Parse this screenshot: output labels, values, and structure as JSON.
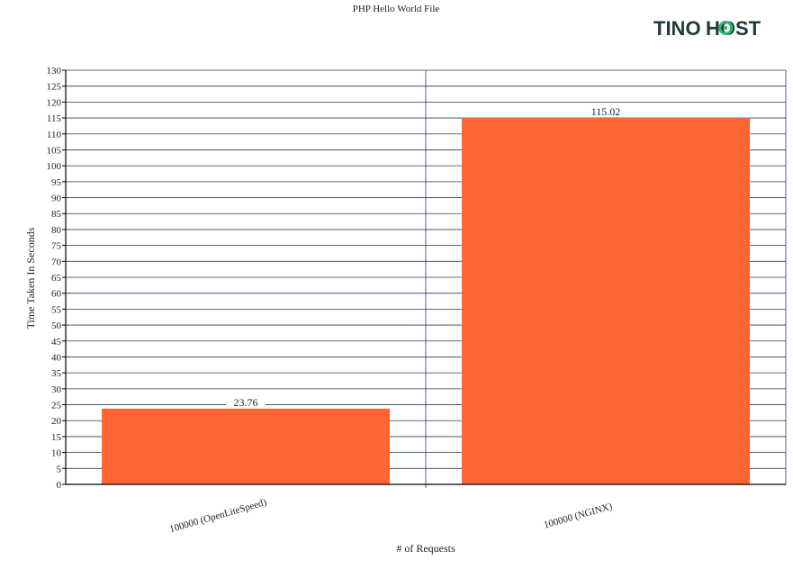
{
  "brand": {
    "logo_text_left": "TINO",
    "logo_text_right": "HOST",
    "logo_color": "#1e3b3b",
    "logo_accent": "#2bb673"
  },
  "colors": {
    "bar": "#ff6633",
    "grid": "#1f3f6e",
    "axis": "#000000"
  },
  "chart_data": {
    "type": "bar",
    "title": "PHP Hello World File",
    "xlabel": "# of Requests",
    "ylabel": "Time Taken In Seconds",
    "categories": [
      "100000 (OpenLiteSpeed)",
      "100000 (NGINX)"
    ],
    "values": [
      23.76,
      115.02
    ],
    "data_labels": [
      "23.76",
      "115.02"
    ],
    "ylim": [
      0,
      130
    ],
    "ytick_step": 5,
    "grid": true,
    "legend": "none"
  }
}
